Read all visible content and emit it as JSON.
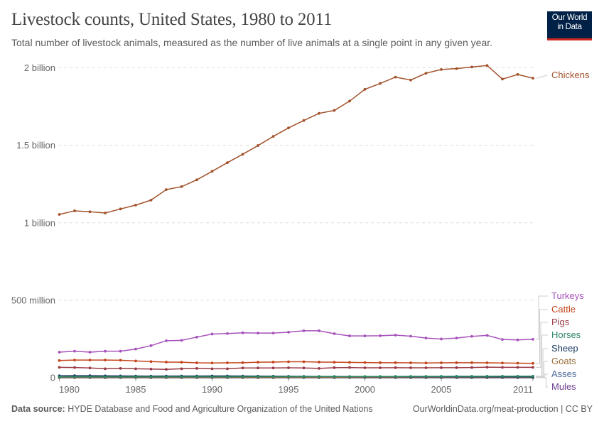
{
  "header": {
    "title": "Livestock counts, United States, 1980 to 2011",
    "subtitle": "Total number of livestock animals, measured as the number of live animals at a single point in any given year.",
    "logo": "Our World in Data",
    "logo_line1": "Our World",
    "logo_line2": "in Data"
  },
  "footer": {
    "source_label": "Data source:",
    "source_text": " HYDE Database and Food and Agriculture Organization of the United Nations",
    "credit": "OurWorldinData.org/meat-production | CC BY"
  },
  "chart_data": {
    "type": "line",
    "title": "Livestock counts, United States, 1980 to 2011",
    "xlabel": "",
    "ylabel": "",
    "xlim": [
      1980,
      2011
    ],
    "ylim": [
      0,
      2000000000
    ],
    "grid": true,
    "legend_placement": "right (labels at line ends)",
    "x_ticks": [
      1980,
      1985,
      1990,
      1995,
      2000,
      2005,
      2011
    ],
    "x_tick_labels": [
      "1980",
      "1985",
      "1990",
      "1995",
      "2000",
      "2005",
      "2011"
    ],
    "y_ticks": [
      0,
      500000000,
      1000000000,
      1500000000,
      2000000000
    ],
    "y_tick_labels": [
      "0",
      "500 million",
      "1 billion",
      "1.5 billion",
      "2 billion"
    ],
    "x": [
      1980,
      1981,
      1982,
      1983,
      1984,
      1985,
      1986,
      1987,
      1988,
      1989,
      1990,
      1991,
      1992,
      1993,
      1994,
      1995,
      1996,
      1997,
      1998,
      1999,
      2000,
      2001,
      2002,
      2003,
      2004,
      2005,
      2006,
      2007,
      2008,
      2009,
      2010,
      2011
    ],
    "series": [
      {
        "name": "Chickens",
        "color": "#a2522b",
        "values": [
          1054000000,
          1077000000,
          1071000000,
          1063000000,
          1089000000,
          1114000000,
          1146000000,
          1214000000,
          1233000000,
          1277000000,
          1332000000,
          1388000000,
          1442000000,
          1498000000,
          1557000000,
          1612000000,
          1660000000,
          1706000000,
          1725000000,
          1785000000,
          1861000000,
          1899000000,
          1940000000,
          1921000000,
          1965000000,
          1989000000,
          1995000000,
          2005000000,
          2015000000,
          1927000000,
          1957000000,
          1933000000
        ]
      },
      {
        "name": "Turkeys",
        "color": "#a652ba",
        "values": [
          165000000,
          171000000,
          165000000,
          171000000,
          171000000,
          185000000,
          207000000,
          239000000,
          241000000,
          262000000,
          282000000,
          285000000,
          290000000,
          288000000,
          288000000,
          294000000,
          303000000,
          303000000,
          284000000,
          270000000,
          270000000,
          271000000,
          275000000,
          268000000,
          256000000,
          250000000,
          256000000,
          267000000,
          273000000,
          247000000,
          244000000,
          248000000
        ]
      },
      {
        "name": "Cattle",
        "color": "#c4451c",
        "values": [
          111000000,
          114000000,
          114000000,
          114000000,
          113000000,
          108000000,
          104000000,
          101000000,
          100000000,
          96000000,
          95000000,
          96000000,
          97000000,
          100000000,
          101000000,
          103000000,
          103000000,
          101000000,
          100000000,
          99000000,
          98000000,
          97000000,
          97000000,
          96000000,
          95000000,
          96000000,
          97000000,
          97000000,
          96000000,
          95000000,
          94000000,
          93000000
        ]
      },
      {
        "name": "Pigs",
        "color": "#9a3a47",
        "values": [
          67000000,
          66000000,
          63000000,
          58000000,
          60000000,
          58000000,
          56000000,
          54000000,
          58000000,
          60000000,
          58000000,
          58000000,
          63000000,
          63000000,
          63000000,
          64000000,
          63000000,
          60000000,
          65000000,
          66000000,
          64000000,
          64000000,
          65000000,
          64000000,
          64000000,
          65000000,
          65000000,
          66000000,
          68000000,
          67000000,
          67000000,
          67000000
        ]
      },
      {
        "name": "Horses",
        "color": "#2c8465",
        "values": [
          5400000,
          5500000,
          5600000,
          5700000,
          5800000,
          5900000,
          6000000,
          6100000,
          6200000,
          6300000,
          6400000,
          6500000,
          6600000,
          6700000,
          6800000,
          6900000,
          7000000,
          7200000,
          7400000,
          7600000,
          7800000,
          8000000,
          8200000,
          8400000,
          8600000,
          8800000,
          9000000,
          9200000,
          9400000,
          9500000,
          9500000,
          9500000
        ]
      },
      {
        "name": "Sheep",
        "color": "#18375f",
        "values": [
          12700000,
          12900000,
          13000000,
          11900000,
          11400000,
          10700000,
          10100000,
          10600000,
          10900000,
          10900000,
          11400000,
          11200000,
          10800000,
          10200000,
          9800000,
          9000000,
          8500000,
          8000000,
          7800000,
          7200000,
          7000000,
          6900000,
          6700000,
          6300000,
          6100000,
          6100000,
          6200000,
          6200000,
          5900000,
          5700000,
          5600000,
          5500000
        ]
      },
      {
        "name": "Goats",
        "color": "#996d39",
        "values": [
          1400000,
          1400000,
          1400000,
          1500000,
          1500000,
          1500000,
          1600000,
          1600000,
          1700000,
          1700000,
          1800000,
          1800000,
          1900000,
          1900000,
          2000000,
          2000000,
          2000000,
          2100000,
          2200000,
          2200000,
          2300000,
          2400000,
          2500000,
          2600000,
          2700000,
          2800000,
          3000000,
          3100000,
          3000000,
          3000000,
          2900000,
          2900000
        ]
      },
      {
        "name": "Asses",
        "color": "#4c6a9c",
        "values": [
          52000,
          52000,
          52000,
          52000,
          52000,
          52000,
          52000,
          52000,
          52000,
          52000,
          52000,
          52000,
          52000,
          52000,
          52000,
          52000,
          52000,
          52000,
          52000,
          52000,
          52000,
          52000,
          52000,
          52000,
          52000,
          52000,
          52000,
          52000,
          52000,
          52000,
          52000,
          52000
        ]
      },
      {
        "name": "Mules",
        "color": "#6d3e91",
        "values": [
          28000,
          28000,
          28000,
          28000,
          28000,
          28000,
          28000,
          28000,
          28000,
          28000,
          28000,
          28000,
          28000,
          28000,
          28000,
          28000,
          28000,
          28000,
          28000,
          28000,
          28000,
          28000,
          28000,
          28000,
          28000,
          28000,
          28000,
          28000,
          28000,
          28000,
          28000,
          28000
        ]
      }
    ]
  }
}
